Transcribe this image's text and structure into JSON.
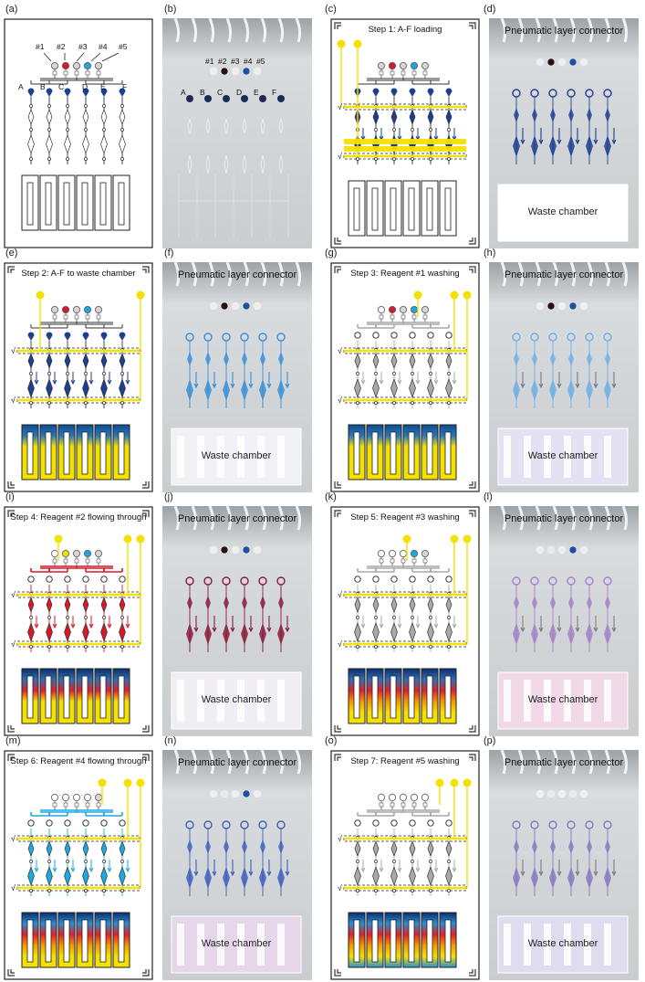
{
  "panel_letters": [
    "(a)",
    "(b)",
    "(c)",
    "(d)",
    "(e)",
    "(f)",
    "(g)",
    "(h)",
    "(i)",
    "(j)",
    "(k)",
    "(l)",
    "(m)",
    "(n)",
    "(o)",
    "(p)"
  ],
  "reagent_labels": [
    "#1",
    "#2",
    "#3",
    "#4",
    "#5"
  ],
  "sample_labels": [
    "A",
    "B",
    "C",
    "D",
    "E",
    "F"
  ],
  "check_mark": "√",
  "photo_caption": "Pneumatic layer connector",
  "waste_label": "Waste chamber",
  "steps": [
    {
      "title": "Step 1: A-F loading"
    },
    {
      "title": "Step 2: A-F to waste chamber"
    },
    {
      "title": "Step 3: Reagent #1 washing"
    },
    {
      "title": "Step 4: Reagent #2 flowing through"
    },
    {
      "title": "Step 5: Reagent #3 washing"
    },
    {
      "title": "Step 6: Reagent #4 flowing through"
    },
    {
      "title": "Step 7: Reagent #5 washing"
    }
  ],
  "colors": {
    "yellow": "#f5e100",
    "red": "#d7192a",
    "cyan": "#1ea8e0",
    "navy": "#1c3f8f",
    "gray": "#a9a9a9",
    "photo_bg": "#cfd3d6"
  }
}
